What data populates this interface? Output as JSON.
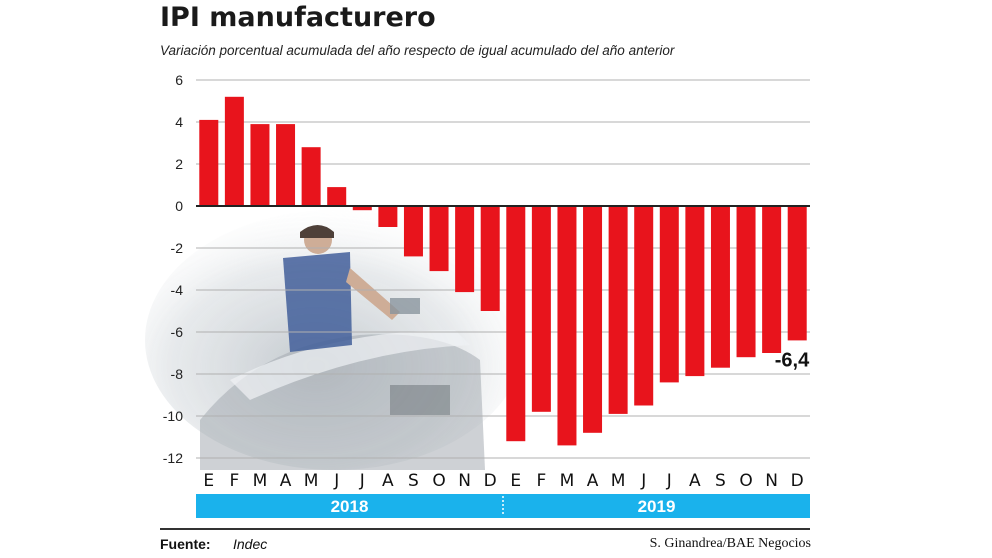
{
  "title": "IPI manufacturero",
  "subtitle": "Variación porcentual acumulada del año respecto de igual acumulado del año anterior",
  "footer": {
    "source_label": "Fuente:",
    "source_value": "Indec",
    "credit": "S. Ginandrea/BAE Negocios"
  },
  "colors": {
    "bar": "#e8141c",
    "year_band": "#1ab2ec",
    "grid": "#b0b0b0",
    "zero_line": "#222222"
  },
  "chart_data": {
    "type": "bar",
    "title": "IPI manufacturero",
    "subtitle": "Variación porcentual acumulada del año respecto de igual acumulado del año anterior",
    "xlabel": "",
    "ylabel": "",
    "ylim": [
      -12,
      6
    ],
    "yticks": [
      6,
      4,
      2,
      0,
      -2,
      -4,
      -6,
      -8,
      -10,
      -12
    ],
    "grid": true,
    "categories": [
      "E",
      "F",
      "M",
      "A",
      "M",
      "J",
      "J",
      "A",
      "S",
      "O",
      "N",
      "D",
      "E",
      "F",
      "M",
      "A",
      "M",
      "J",
      "J",
      "A",
      "S",
      "O",
      "N",
      "D"
    ],
    "groups": [
      {
        "label": "2018",
        "start": 0,
        "end": 11
      },
      {
        "label": "2019",
        "start": 12,
        "end": 23
      }
    ],
    "values": [
      4.1,
      5.2,
      3.9,
      3.9,
      2.8,
      0.9,
      -0.2,
      -1.0,
      -2.4,
      -3.1,
      -4.1,
      -5.0,
      -11.2,
      -9.8,
      -11.4,
      -10.8,
      -9.9,
      -9.5,
      -8.4,
      -8.1,
      -7.7,
      -7.2,
      -7.0,
      -6.4
    ],
    "annotations": [
      {
        "index": 23,
        "text": "-6,4"
      }
    ]
  }
}
